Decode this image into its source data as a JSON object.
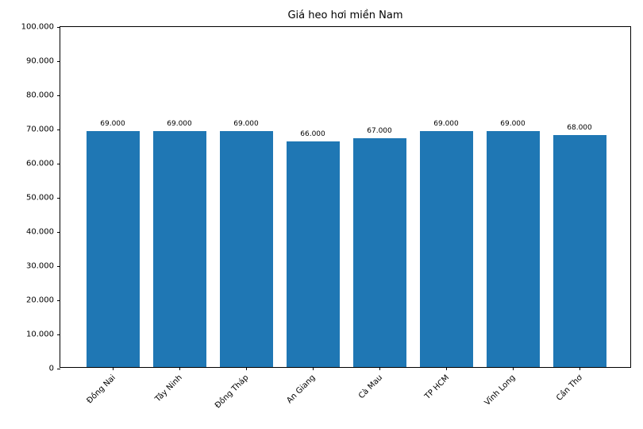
{
  "chart_data": {
    "type": "bar",
    "title": "Giá heo hơi miền Nam",
    "categories": [
      "Đồng Nai",
      "Tây Ninh",
      "Đồng Tháp",
      "An Giang",
      "Cà Mau",
      "TP HCM",
      "Vĩnh Long",
      "Cần Thơ"
    ],
    "values": [
      69000,
      69000,
      69000,
      66000,
      67000,
      69000,
      69000,
      68000
    ],
    "bar_labels": [
      "69.000",
      "69.000",
      "69.000",
      "66.000",
      "67.000",
      "69.000",
      "69.000",
      "68.000"
    ],
    "bar_color": "#1f77b4",
    "xlabel": "",
    "ylabel": "",
    "ylim": [
      0,
      100000
    ],
    "yticks": [
      {
        "value": 0,
        "label": "0"
      },
      {
        "value": 10000,
        "label": "10.000"
      },
      {
        "value": 20000,
        "label": "20.000"
      },
      {
        "value": 30000,
        "label": "30.000"
      },
      {
        "value": 40000,
        "label": "40.000"
      },
      {
        "value": 50000,
        "label": "50.000"
      },
      {
        "value": 60000,
        "label": "60.000"
      },
      {
        "value": 70000,
        "label": "70.000"
      },
      {
        "value": 80000,
        "label": "80.000"
      },
      {
        "value": 90000,
        "label": "90.000"
      },
      {
        "value": 100000,
        "label": "100.000"
      }
    ],
    "xtick_rotation": 45,
    "grid": false,
    "legend": null
  }
}
